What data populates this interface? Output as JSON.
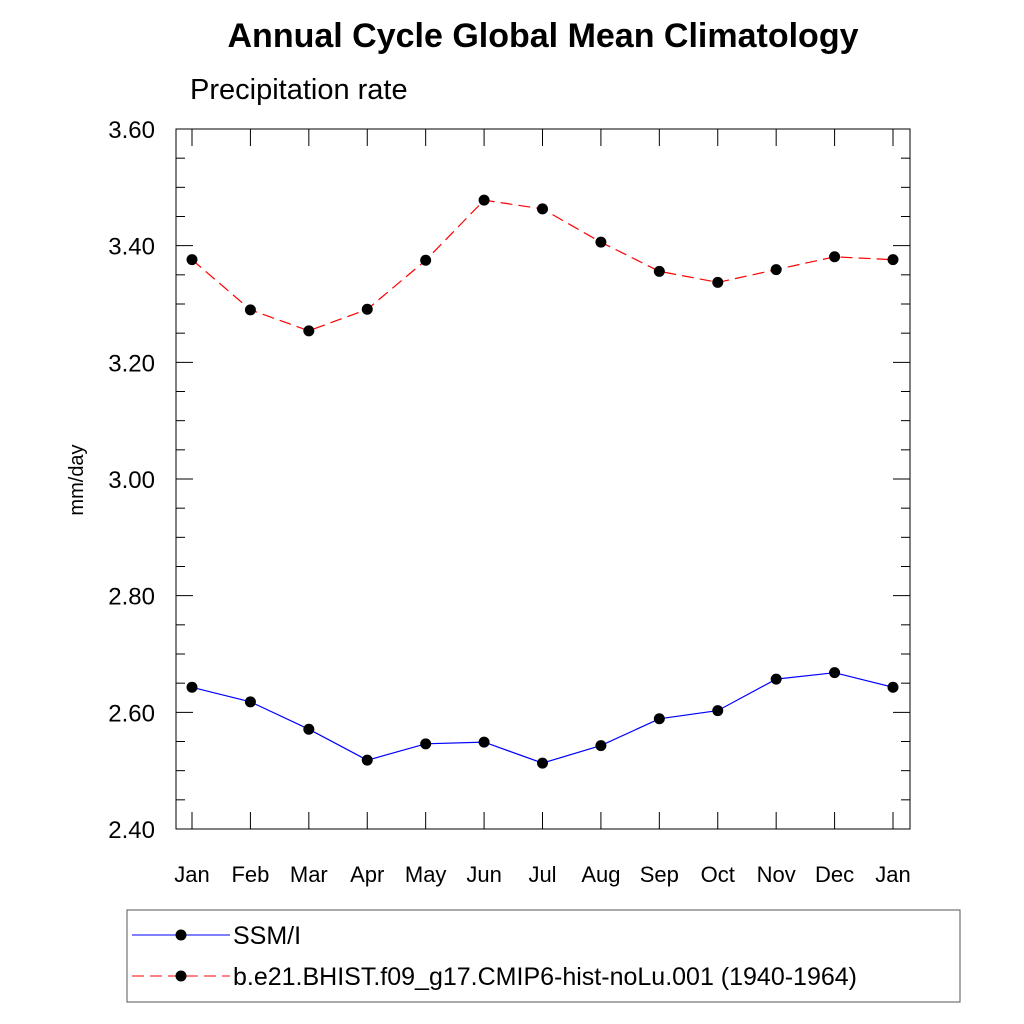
{
  "chart_data": {
    "type": "line",
    "title": "Annual Cycle Global Mean Climatology",
    "subtitle": "Precipitation rate",
    "xlabel": "",
    "ylabel": "mm/day",
    "categories": [
      "Jan",
      "Feb",
      "Mar",
      "Apr",
      "May",
      "Jun",
      "Jul",
      "Aug",
      "Sep",
      "Oct",
      "Nov",
      "Dec",
      "Jan"
    ],
    "ylim": [
      2.4,
      3.6
    ],
    "yticks": [
      "2.40",
      "2.60",
      "2.80",
      "3.00",
      "3.20",
      "3.40",
      "3.60"
    ],
    "grid": false,
    "legend_position": "bottom",
    "series": [
      {
        "name": "SSM/I",
        "color": "#0000ff",
        "line_style": "solid",
        "marker": "filled-circle",
        "values": [
          2.643,
          2.618,
          2.571,
          2.518,
          2.546,
          2.549,
          2.513,
          2.543,
          2.589,
          2.603,
          2.657,
          2.668,
          2.643
        ]
      },
      {
        "name": "b.e21.BHIST.f09_g17.CMIP6-hist-noLu.001 (1940-1964)",
        "color": "#ff0000",
        "line_style": "dashed",
        "marker": "filled-circle",
        "values": [
          3.376,
          3.29,
          3.254,
          3.291,
          3.375,
          3.478,
          3.463,
          3.406,
          3.356,
          3.337,
          3.359,
          3.381,
          3.376
        ]
      }
    ]
  }
}
